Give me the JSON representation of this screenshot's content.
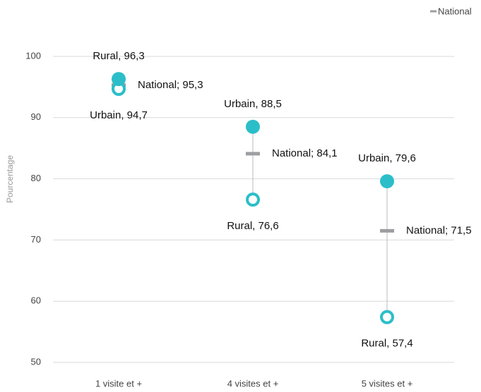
{
  "chart_data": {
    "type": "dumbbell",
    "ylabel": "Pourcentage",
    "categories": [
      "1 visite et +",
      "4 visites et +",
      "5 visites et +"
    ],
    "series": [
      {
        "marker": "filled",
        "color": "#2bbec9",
        "values": [
          96.3,
          88.5,
          79.6
        ],
        "value_labels": [
          "Rural, 96,3",
          "Urbain, 88,5",
          "Urbain, 79,6"
        ]
      },
      {
        "marker": "hollow",
        "color": "#2bbec9",
        "values": [
          94.7,
          76.6,
          57.4
        ],
        "value_labels": [
          "Urbain, 94,7",
          "Rural, 76,6",
          "Rural, 57,4"
        ]
      },
      {
        "name": "National",
        "marker": "dash",
        "color": "#9c9ea1",
        "values": [
          95.3,
          84.1,
          71.5
        ],
        "value_labels": [
          "National; 95,3",
          "National; 84,1",
          "National; 71,5"
        ]
      }
    ],
    "ylim": [
      50,
      100
    ],
    "yticks": [
      50,
      60,
      70,
      80,
      90,
      100
    ],
    "grid": true,
    "legend": "top-right"
  }
}
